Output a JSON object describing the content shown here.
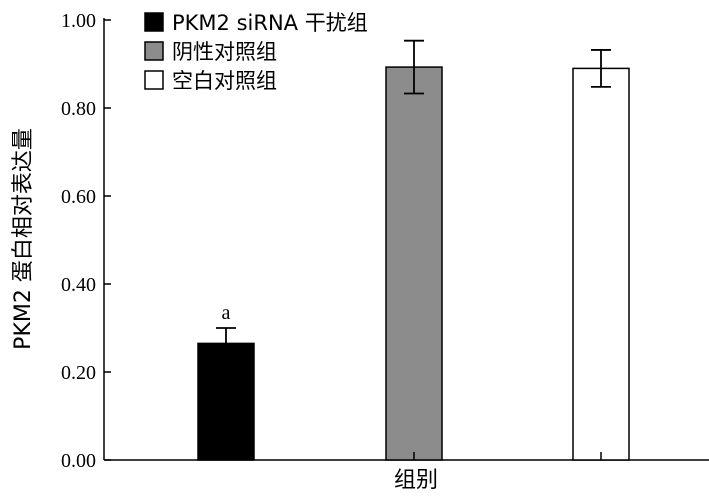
{
  "chart_data": {
    "type": "bar",
    "xlabel": "组别",
    "ylabel": "PKM2 蛋白相对表达量",
    "ylim": [
      0,
      1
    ],
    "yticks": [
      "0.00",
      "0.20",
      "0.40",
      "0.60",
      "0.80",
      "1.00"
    ],
    "series": [
      {
        "name": "PKM2 siRNA 干扰组",
        "value": 0.265,
        "error": 0.035,
        "color": "#000000",
        "annotation": "a"
      },
      {
        "name": "阴性对照组",
        "value": 0.893,
        "error": 0.06,
        "color": "#8c8c8c",
        "annotation": ""
      },
      {
        "name": "空白对照组",
        "value": 0.89,
        "error": 0.042,
        "color": "#ffffff",
        "annotation": ""
      }
    ],
    "legend_position": "top-left",
    "grid": false
  }
}
